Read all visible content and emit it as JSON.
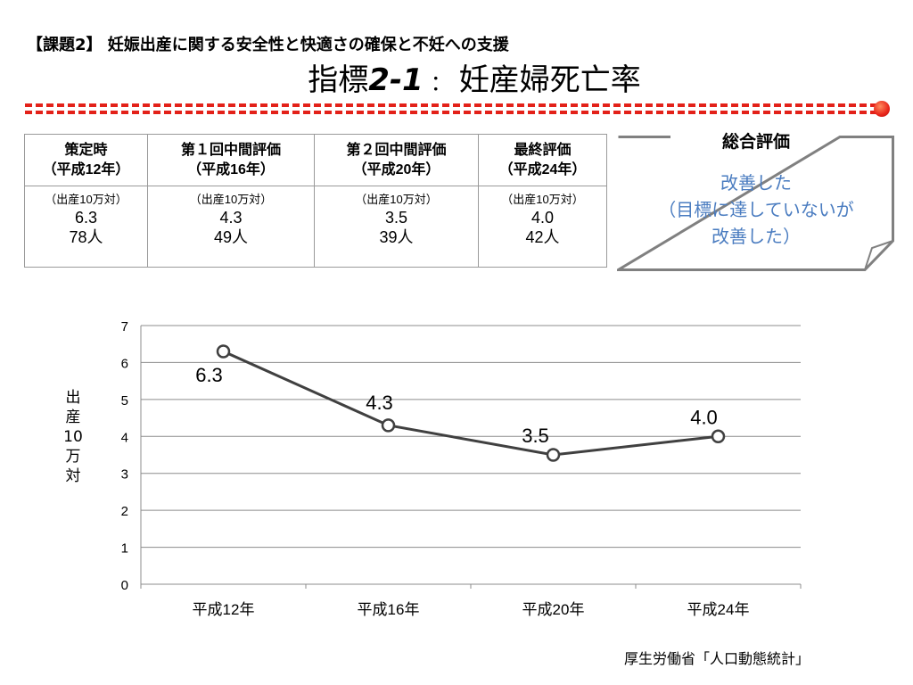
{
  "header": {
    "subtitle": "【課題2】 妊娠出産に関する安全性と快適さの確保と不妊への支援",
    "title_prefix": "指標",
    "title_num": "2-1",
    "title_sep": "：",
    "title_text": "妊産婦死亡率"
  },
  "table": {
    "headers": [
      {
        "line1": "策定時",
        "line2": "（平成12年）"
      },
      {
        "line1": "第１回中間評価",
        "line2": "（平成16年）"
      },
      {
        "line1": "第２回中間評価",
        "line2": "（平成20年）"
      },
      {
        "line1": "最終評価",
        "line2": "（平成24年）"
      }
    ],
    "cells": [
      {
        "unit": "（出産10万対）",
        "value": "6.3",
        "count": "78人"
      },
      {
        "unit": "（出産10万対）",
        "value": "4.3",
        "count": "49人"
      },
      {
        "unit": "（出産10万対）",
        "value": "3.5",
        "count": "39人"
      },
      {
        "unit": "（出産10万対）",
        "value": "4.0",
        "count": "42人"
      }
    ]
  },
  "evaluation": {
    "heading": "総合評価",
    "line1": "改善した",
    "line2": "（目標に達していないが",
    "line3": "改善した）",
    "text_color": "#4a7cc0"
  },
  "chart_data": {
    "type": "line",
    "categories": [
      "平成12年",
      "平成16年",
      "平成20年",
      "平成24年"
    ],
    "values": [
      6.3,
      4.3,
      3.5,
      4.0
    ],
    "data_labels": [
      "6.3",
      "4.3",
      "3.5",
      "4.0"
    ],
    "ylabel": "出産10万対",
    "ylim": [
      0,
      7
    ],
    "yticks": [
      0,
      1,
      2,
      3,
      4,
      5,
      6,
      7
    ],
    "grid": true,
    "line_color": "#404040"
  },
  "source": "厚生労働省「人口動態統計」"
}
